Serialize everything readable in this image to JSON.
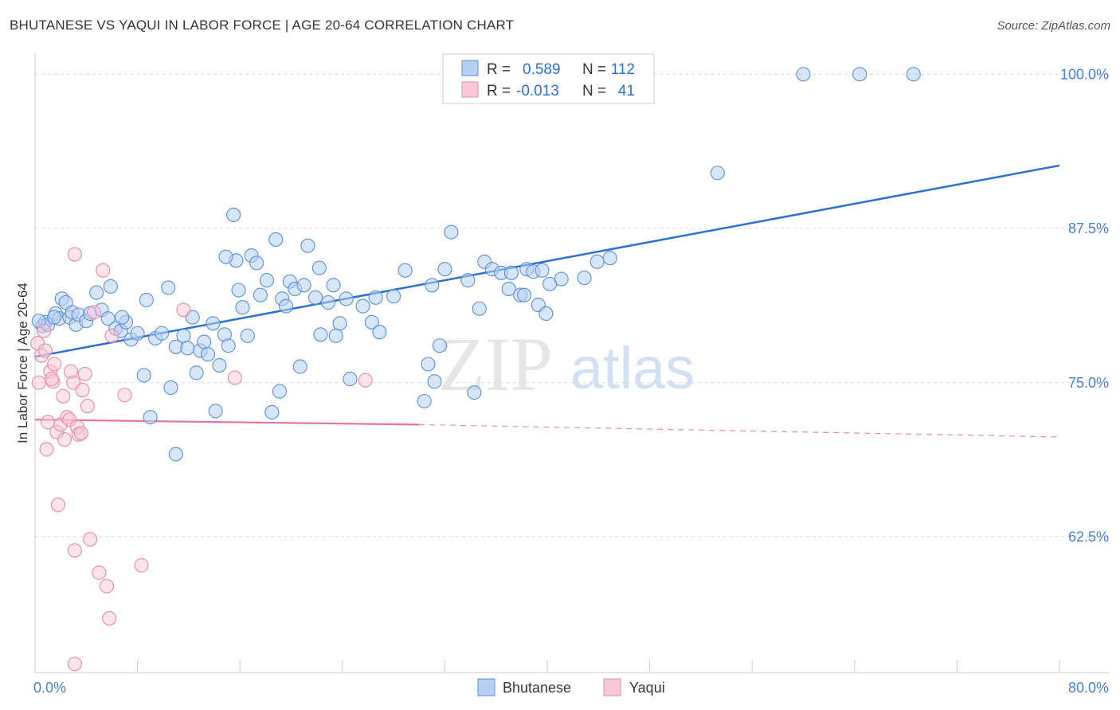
{
  "title": "BHUTANESE VS YAQUI IN LABOR FORCE | AGE 20-64 CORRELATION CHART",
  "source": "Source: ZipAtlas.com",
  "watermark": {
    "zip": "ZIP",
    "atlas": "atlas"
  },
  "colors": {
    "bhutanese_fill": "#b7d0f2",
    "bhutanese_stroke": "#5b8fd6",
    "bhutanese_line": "#2a6fd4",
    "yaqui_fill": "#f8c8d6",
    "yaqui_stroke": "#e88aa8",
    "yaqui_line": "#e8729a",
    "grid": "#dddddd",
    "tick": "#4a7fd0"
  },
  "legend": {
    "rows": [
      {
        "r_label": "R =",
        "r_value": "0.589",
        "n_label": "N =",
        "n_value": "112"
      },
      {
        "r_label": "R =",
        "r_value": "-0.013",
        "n_label": "N =",
        "n_value": "41"
      }
    ]
  },
  "bottom_legend": [
    "Bhutanese",
    "Yaqui"
  ],
  "chart_data": {
    "type": "scatter",
    "title": "BHUTANESE VS YAQUI IN LABOR FORCE | AGE 20-64 CORRELATION CHART",
    "xlabel": "",
    "ylabel": "In Labor Force | Age 20-64",
    "xlim": [
      0,
      80
    ],
    "ylim": [
      51.5,
      101.5
    ],
    "x_tick_labels": [
      "0.0%",
      "80.0%"
    ],
    "y_ticks": [
      62.5,
      75.0,
      87.5,
      100.0
    ],
    "y_tick_labels": [
      "62.5%",
      "75.0%",
      "87.5%",
      "100.0%"
    ],
    "series": [
      {
        "name": "Bhutanese",
        "r": 0.589,
        "n": 112,
        "trend": {
          "x0": 0,
          "y0": 77.1,
          "x1": 80,
          "y1": 92.6
        },
        "points": [
          [
            0.6,
            79.6
          ],
          [
            0.8,
            79.9
          ],
          [
            1.0,
            79.7
          ],
          [
            1.6,
            80.6
          ],
          [
            1.9,
            80.2
          ],
          [
            2.1,
            81.8
          ],
          [
            2.4,
            81.5
          ],
          [
            2.7,
            80.3
          ],
          [
            2.9,
            80.7
          ],
          [
            3.2,
            79.7
          ],
          [
            3.4,
            80.5
          ],
          [
            4.0,
            80.0
          ],
          [
            4.3,
            80.6
          ],
          [
            4.8,
            82.3
          ],
          [
            5.2,
            80.9
          ],
          [
            5.7,
            80.2
          ],
          [
            5.9,
            82.8
          ],
          [
            6.3,
            79.4
          ],
          [
            6.7,
            79.2
          ],
          [
            7.1,
            79.9
          ],
          [
            7.5,
            78.5
          ],
          [
            8.0,
            79.0
          ],
          [
            8.5,
            75.6
          ],
          [
            8.7,
            81.7
          ],
          [
            9.0,
            72.2
          ],
          [
            9.4,
            78.6
          ],
          [
            9.9,
            79.0
          ],
          [
            10.4,
            82.7
          ],
          [
            10.6,
            74.6
          ],
          [
            11.0,
            69.2
          ],
          [
            11.0,
            77.9
          ],
          [
            11.6,
            78.8
          ],
          [
            11.9,
            77.8
          ],
          [
            12.3,
            80.3
          ],
          [
            12.6,
            75.8
          ],
          [
            12.9,
            77.6
          ],
          [
            13.2,
            78.3
          ],
          [
            13.5,
            77.3
          ],
          [
            13.9,
            79.8
          ],
          [
            14.1,
            72.7
          ],
          [
            14.4,
            76.4
          ],
          [
            14.8,
            78.9
          ],
          [
            15.1,
            78.0
          ],
          [
            15.5,
            88.6
          ],
          [
            15.7,
            84.9
          ],
          [
            15.9,
            82.5
          ],
          [
            16.2,
            81.1
          ],
          [
            16.6,
            78.8
          ],
          [
            16.9,
            85.3
          ],
          [
            17.3,
            84.7
          ],
          [
            17.6,
            82.1
          ],
          [
            18.1,
            83.3
          ],
          [
            18.5,
            72.6
          ],
          [
            18.8,
            86.6
          ],
          [
            19.1,
            74.3
          ],
          [
            19.3,
            81.8
          ],
          [
            19.6,
            81.2
          ],
          [
            19.9,
            83.2
          ],
          [
            20.3,
            82.6
          ],
          [
            20.7,
            76.3
          ],
          [
            21.0,
            82.9
          ],
          [
            21.3,
            86.1
          ],
          [
            21.9,
            81.9
          ],
          [
            22.2,
            84.3
          ],
          [
            22.3,
            78.9
          ],
          [
            22.9,
            81.5
          ],
          [
            23.3,
            82.9
          ],
          [
            23.8,
            79.8
          ],
          [
            24.3,
            81.8
          ],
          [
            24.6,
            75.3
          ],
          [
            25.6,
            81.2
          ],
          [
            26.3,
            79.9
          ],
          [
            26.6,
            81.9
          ],
          [
            26.9,
            79.1
          ],
          [
            28.0,
            82.0
          ],
          [
            28.9,
            84.1
          ],
          [
            30.4,
            73.5
          ],
          [
            30.7,
            76.5
          ],
          [
            31.0,
            82.9
          ],
          [
            31.2,
            75.1
          ],
          [
            31.6,
            78.0
          ],
          [
            32.0,
            84.2
          ],
          [
            32.5,
            87.2
          ],
          [
            33.8,
            83.3
          ],
          [
            34.3,
            74.2
          ],
          [
            34.7,
            81.0
          ],
          [
            35.1,
            84.8
          ],
          [
            35.7,
            84.2
          ],
          [
            36.4,
            83.9
          ],
          [
            37.0,
            82.6
          ],
          [
            37.2,
            83.9
          ],
          [
            37.9,
            82.1
          ],
          [
            38.2,
            82.1
          ],
          [
            38.4,
            84.2
          ],
          [
            38.9,
            84.0
          ],
          [
            39.3,
            81.3
          ],
          [
            39.6,
            84.1
          ],
          [
            39.9,
            80.6
          ],
          [
            40.2,
            83.0
          ],
          [
            41.1,
            83.4
          ],
          [
            42.9,
            83.5
          ],
          [
            43.9,
            84.8
          ],
          [
            44.9,
            85.1
          ],
          [
            53.3,
            92.0
          ],
          [
            60.0,
            100.0
          ],
          [
            64.4,
            100.0
          ],
          [
            68.6,
            100.0
          ],
          [
            0.3,
            80.0
          ],
          [
            1.5,
            80.3
          ],
          [
            6.8,
            80.3
          ],
          [
            23.5,
            78.8
          ],
          [
            14.9,
            85.2
          ]
        ]
      },
      {
        "name": "Yaqui",
        "r": -0.013,
        "n": 41,
        "trend": {
          "x0": 0,
          "y0": 72.0,
          "x1": 30,
          "y1": 71.6,
          "dash_x1": 80,
          "dash_y1": 70.6
        },
        "points": [
          [
            0.2,
            78.2
          ],
          [
            0.3,
            75.0
          ],
          [
            0.5,
            77.2
          ],
          [
            0.7,
            79.2
          ],
          [
            0.8,
            77.6
          ],
          [
            0.9,
            69.6
          ],
          [
            1.0,
            71.8
          ],
          [
            1.2,
            75.9
          ],
          [
            1.4,
            75.1
          ],
          [
            1.5,
            76.5
          ],
          [
            1.7,
            71.0
          ],
          [
            1.8,
            65.1
          ],
          [
            2.0,
            71.6
          ],
          [
            2.2,
            73.9
          ],
          [
            2.3,
            70.4
          ],
          [
            2.5,
            72.2
          ],
          [
            2.7,
            72.0
          ],
          [
            2.8,
            75.9
          ],
          [
            3.0,
            75.0
          ],
          [
            3.1,
            61.4
          ],
          [
            3.3,
            71.4
          ],
          [
            3.4,
            70.8
          ],
          [
            3.6,
            70.9
          ],
          [
            3.7,
            74.4
          ],
          [
            3.9,
            75.7
          ],
          [
            4.1,
            73.1
          ],
          [
            4.3,
            62.3
          ],
          [
            4.6,
            80.7
          ],
          [
            5.0,
            59.6
          ],
          [
            5.3,
            84.1
          ],
          [
            5.6,
            58.5
          ],
          [
            5.8,
            55.9
          ],
          [
            6.0,
            78.8
          ],
          [
            7.0,
            74.0
          ],
          [
            8.3,
            60.2
          ],
          [
            11.6,
            80.9
          ],
          [
            15.6,
            75.4
          ],
          [
            25.8,
            75.2
          ],
          [
            3.1,
            85.4
          ],
          [
            3.1,
            52.2
          ],
          [
            1.3,
            75.3
          ]
        ]
      }
    ]
  }
}
